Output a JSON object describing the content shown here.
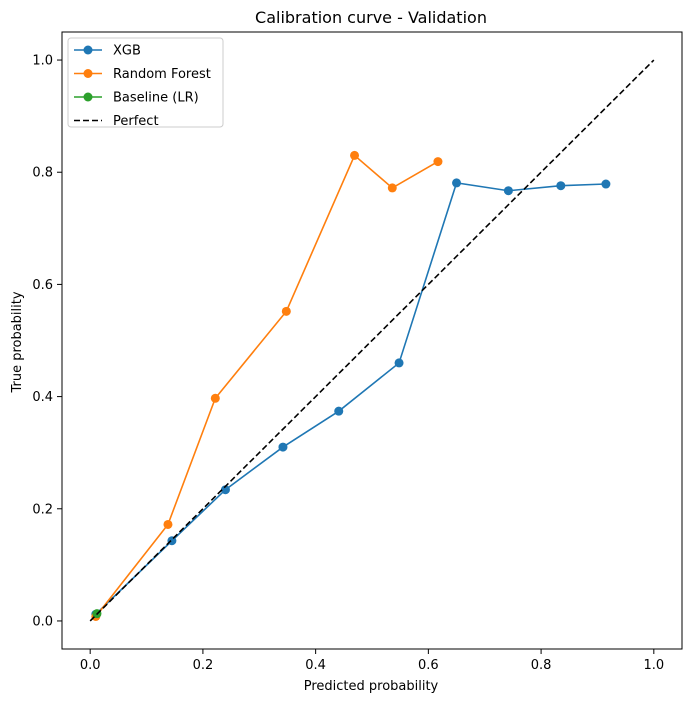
{
  "chart_data": {
    "type": "line",
    "title": "Calibration curve - Validation",
    "xlabel": "Predicted probability",
    "ylabel": "True probability",
    "xlim": [
      -0.05,
      1.05
    ],
    "ylim": [
      -0.05,
      1.05
    ],
    "xticks": [
      0.0,
      0.2,
      0.4,
      0.6,
      0.8,
      1.0
    ],
    "yticks": [
      0.0,
      0.2,
      0.4,
      0.6,
      0.8,
      1.0
    ],
    "tick_labels_x": [
      "0.0",
      "0.2",
      "0.4",
      "0.6",
      "0.8",
      "1.0"
    ],
    "tick_labels_y": [
      "0.0",
      "0.2",
      "0.4",
      "0.6",
      "0.8",
      "1.0"
    ],
    "grid": false,
    "legend_position": "top-left",
    "series": [
      {
        "name": "XGB",
        "color": "#1f77b4",
        "marker": "circle",
        "points": [
          [
            0.01,
            0.012
          ],
          [
            0.145,
            0.143
          ],
          [
            0.24,
            0.234
          ],
          [
            0.342,
            0.31
          ],
          [
            0.441,
            0.374
          ],
          [
            0.548,
            0.46
          ],
          [
            0.65,
            0.781
          ],
          [
            0.742,
            0.767
          ],
          [
            0.835,
            0.776
          ],
          [
            0.915,
            0.779
          ]
        ]
      },
      {
        "name": "Random Forest",
        "color": "#ff7f0e",
        "marker": "circle",
        "points": [
          [
            0.01,
            0.008
          ],
          [
            0.138,
            0.172
          ],
          [
            0.222,
            0.397
          ],
          [
            0.348,
            0.552
          ],
          [
            0.469,
            0.83
          ],
          [
            0.536,
            0.772
          ],
          [
            0.617,
            0.819
          ]
        ]
      },
      {
        "name": "Baseline (LR)",
        "color": "#2ca02c",
        "marker": "circle",
        "points": [
          [
            0.012,
            0.013
          ]
        ]
      },
      {
        "name": "Perfect",
        "color": "#000000",
        "marker": "none",
        "dash": true,
        "points": [
          [
            0.0,
            0.0
          ],
          [
            1.0,
            1.0
          ]
        ]
      }
    ]
  }
}
